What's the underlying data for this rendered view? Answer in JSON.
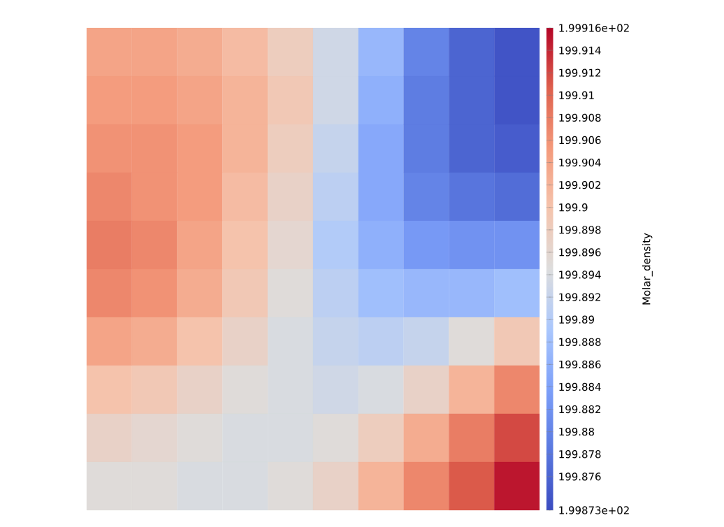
{
  "chart_data": {
    "type": "heatmap",
    "clabel": "Molar_density",
    "categories": [
      null,
      null,
      null,
      null,
      null,
      null,
      null,
      null,
      null,
      null
    ],
    "y_categories": [
      null,
      null,
      null,
      null,
      null,
      null,
      null,
      null,
      null,
      null
    ],
    "clim": [
      199.873,
      199.916
    ],
    "cticks": [
      {
        "value": 199.873,
        "label": "1.99873e+02"
      },
      199.876,
      199.878,
      199.88,
      199.882,
      199.884,
      199.886,
      199.888,
      199.89,
      199.892,
      199.894,
      199.896,
      199.898,
      199.9,
      199.902,
      199.904,
      199.906,
      199.908,
      199.91,
      199.912,
      199.914,
      {
        "value": 199.916,
        "label": "1.99916e+02"
      }
    ],
    "cells": [
      [
        199.904,
        199.904,
        199.903,
        199.901,
        199.898,
        199.893,
        199.887,
        199.88,
        199.876,
        199.874
      ],
      [
        199.905,
        199.905,
        199.904,
        199.902,
        199.899,
        199.893,
        199.886,
        199.879,
        199.876,
        199.874
      ],
      [
        199.906,
        199.906,
        199.905,
        199.902,
        199.898,
        199.892,
        199.885,
        199.879,
        199.876,
        199.875
      ],
      [
        199.907,
        199.906,
        199.905,
        199.901,
        199.897,
        199.891,
        199.885,
        199.88,
        199.878,
        199.877
      ],
      [
        199.908,
        199.907,
        199.904,
        199.9,
        199.896,
        199.89,
        199.886,
        199.883,
        199.882,
        199.882
      ],
      [
        199.907,
        199.906,
        199.903,
        199.899,
        199.895,
        199.891,
        199.888,
        199.887,
        199.887,
        199.888
      ],
      [
        199.904,
        199.903,
        199.9,
        199.897,
        199.894,
        199.892,
        199.891,
        199.892,
        199.895,
        199.899
      ],
      [
        199.9,
        199.899,
        199.897,
        199.895,
        199.894,
        199.893,
        199.894,
        199.897,
        199.902,
        199.907
      ],
      [
        199.897,
        199.896,
        199.895,
        199.894,
        199.894,
        199.895,
        199.898,
        199.903,
        199.908,
        199.912
      ],
      [
        199.895,
        199.895,
        199.894,
        199.894,
        199.895,
        199.897,
        199.902,
        199.907,
        199.911,
        199.915
      ]
    ]
  }
}
